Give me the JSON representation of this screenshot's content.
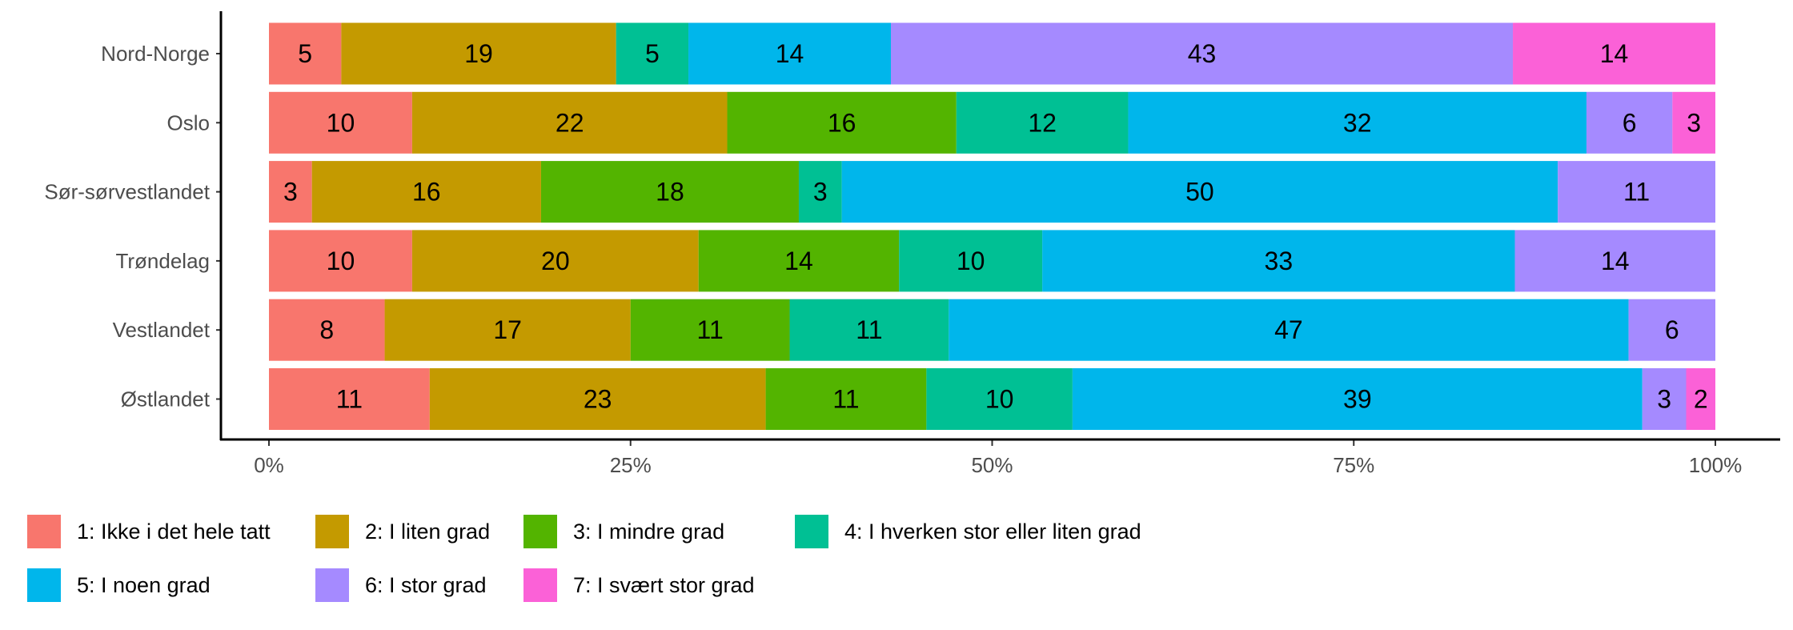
{
  "chart_data": {
    "type": "bar",
    "orientation": "horizontal",
    "stacked": "percent",
    "title": "",
    "xlabel": "",
    "ylabel": "",
    "xlim": [
      0,
      100
    ],
    "x_ticks": [
      "0%",
      "25%",
      "50%",
      "75%",
      "100%"
    ],
    "categories": [
      "Nord-Norge",
      "Oslo",
      "Sør-sørvestlandet",
      "Trøndelag",
      "Vestlandet",
      "Østlandet"
    ],
    "legend_position": "bottom",
    "series": [
      {
        "name": "1: Ikke i det hele tatt",
        "color": "#F8766D",
        "values": [
          5,
          10,
          3,
          10,
          8,
          11
        ]
      },
      {
        "name": "2: I liten grad",
        "color": "#C49A00",
        "values": [
          19,
          22,
          16,
          20,
          17,
          23
        ]
      },
      {
        "name": "3: I mindre grad",
        "color": "#53B400",
        "values": [
          0,
          16,
          18,
          14,
          11,
          11
        ]
      },
      {
        "name": "4: I hverken stor eller liten grad",
        "color": "#00C094",
        "values": [
          5,
          12,
          3,
          10,
          11,
          10
        ]
      },
      {
        "name": "5: I noen grad",
        "color": "#00B6EB",
        "values": [
          14,
          32,
          50,
          33,
          47,
          39
        ]
      },
      {
        "name": "6: I stor grad",
        "color": "#A58AFF",
        "values": [
          43,
          6,
          11,
          14,
          6,
          3
        ]
      },
      {
        "name": "7: I svært stor grad",
        "color": "#FB61D7",
        "values": [
          14,
          3,
          0,
          0,
          0,
          2
        ]
      }
    ]
  }
}
